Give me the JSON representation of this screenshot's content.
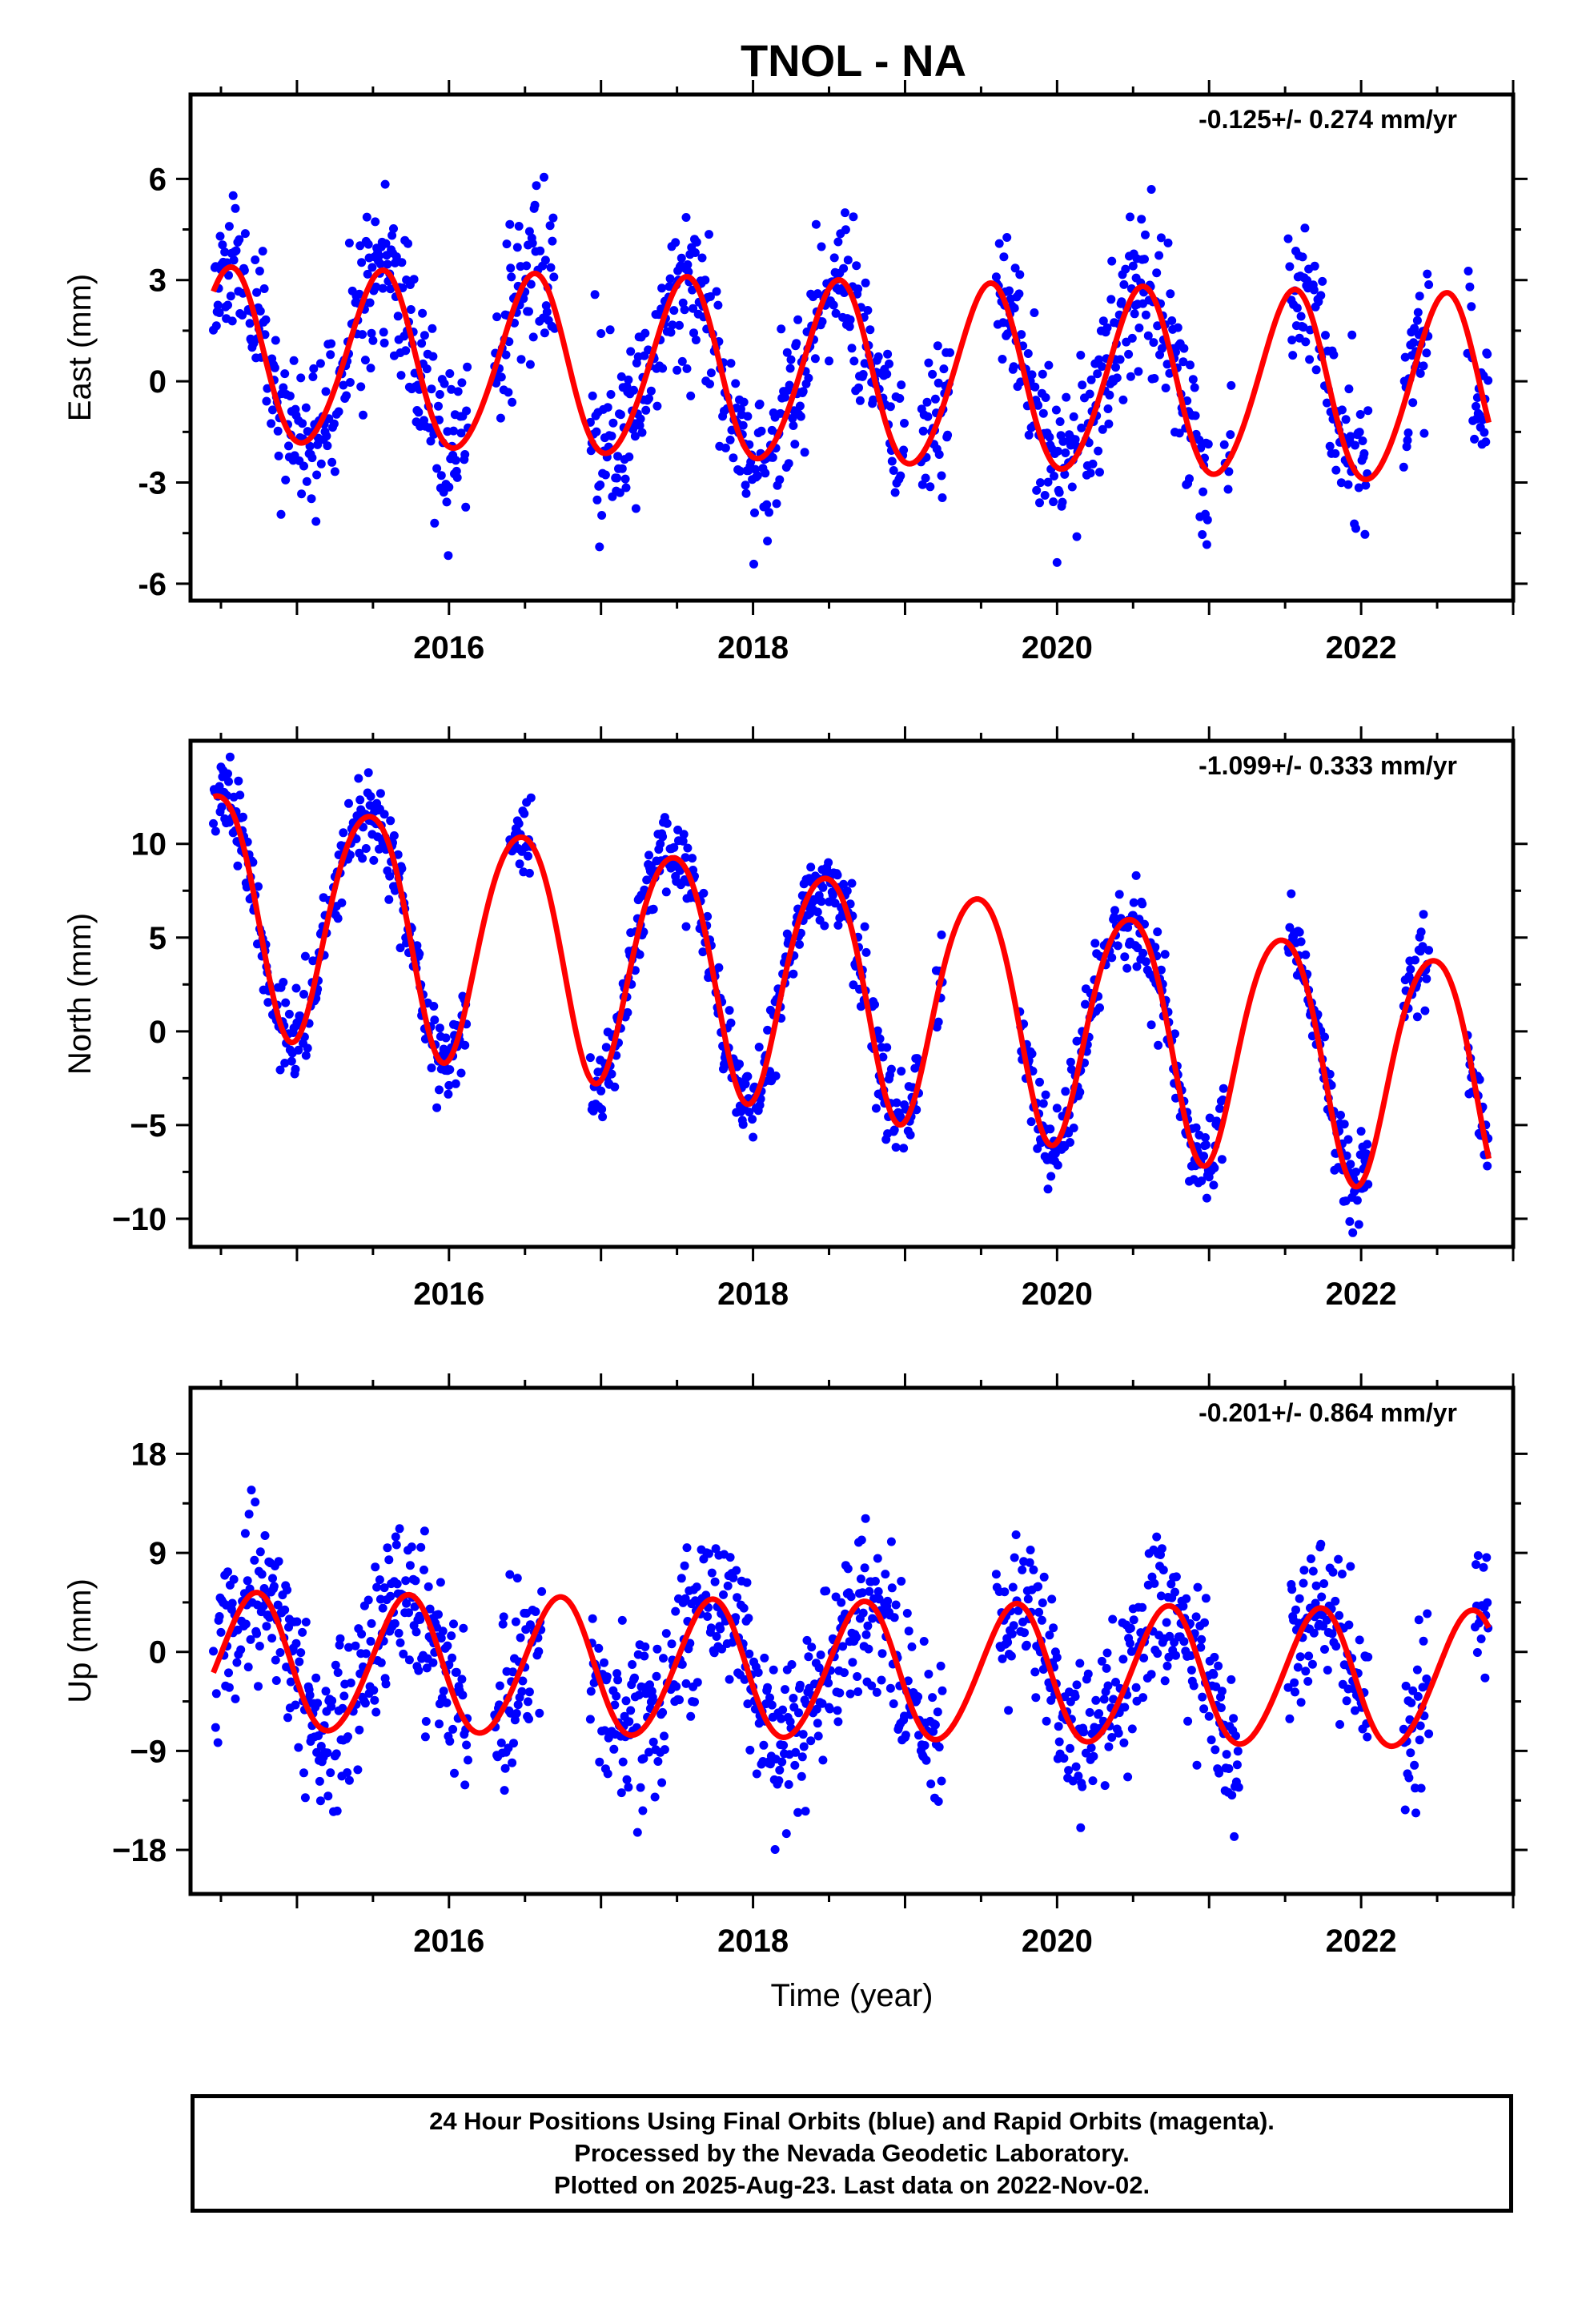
{
  "title": "TNOL - NA",
  "chart_data": [
    {
      "type": "scatter",
      "name": "east-panel",
      "ylabel": "East (mm)",
      "xlabel": "",
      "rate_label": "-0.125+/- 0.274 mm/yr",
      "xlim": [
        2014.3,
        2023.0
      ],
      "ylim": [
        -6.5,
        8.5
      ],
      "xticks": [
        2016,
        2018,
        2020,
        2022
      ],
      "xtick_labels": [
        "2016",
        "2018",
        "2020",
        "2022"
      ],
      "yticks": [
        -6,
        -3,
        0,
        3,
        6
      ],
      "ytick_labels": [
        "-6",
        "-3",
        "0",
        "3",
        "6"
      ],
      "points_color": "#0000ff",
      "model_color": "#ff0000",
      "model": {
        "offset": 0.7,
        "trend": -0.125,
        "t0": 2014.5,
        "amp1": 2.55,
        "phase1": 2014.55,
        "amp2": 0.2,
        "phase2": 2014.62,
        "amp_trend": 0.03
      },
      "sample": {
        "start": 2014.45,
        "end": 2022.84,
        "step": 0.005,
        "noise": 1.2,
        "seed": 11,
        "gaps": [
          [
            2016.13,
            2016.3
          ],
          [
            2016.7,
            2016.93
          ],
          [
            2019.0,
            2019.1
          ],
          [
            2019.3,
            2019.6
          ],
          [
            2021.0,
            2021.1
          ],
          [
            2021.15,
            2021.52
          ],
          [
            2022.05,
            2022.28
          ],
          [
            2022.45,
            2022.7
          ]
        ]
      }
    },
    {
      "type": "scatter",
      "name": "north-panel",
      "ylabel": "North (mm)",
      "xlabel": "",
      "rate_label": "-1.099+/- 0.333 mm/yr",
      "xlim": [
        2014.3,
        2023.0
      ],
      "ylim": [
        -11.5,
        15.5
      ],
      "xticks": [
        2016,
        2018,
        2020,
        2022
      ],
      "xtick_labels": [
        "2016",
        "2018",
        "2020",
        "2022"
      ],
      "yticks": [
        -10,
        -5,
        0,
        5,
        10
      ],
      "ytick_labels": [
        "−10",
        "−5",
        "0",
        "5",
        "10"
      ],
      "points_color": "#0000ff",
      "model_color": "#ff0000",
      "model": {
        "offset": 6.8,
        "trend": -1.099,
        "t0": 2014.5,
        "amp1": 6.3,
        "phase1": 2014.47,
        "amp2": 0.6,
        "phase2": 2014.7,
        "amp_trend": 0.0
      },
      "sample": {
        "start": 2014.45,
        "end": 2022.84,
        "step": 0.005,
        "noise": 1.1,
        "seed": 23,
        "gaps": [
          [
            2016.13,
            2016.4
          ],
          [
            2016.55,
            2016.93
          ],
          [
            2018.75,
            2018.78
          ],
          [
            2019.1,
            2019.2
          ],
          [
            2019.25,
            2019.75
          ],
          [
            2021.1,
            2021.52
          ],
          [
            2022.05,
            2022.28
          ],
          [
            2022.45,
            2022.7
          ]
        ]
      }
    },
    {
      "type": "scatter",
      "name": "up-panel",
      "ylabel": "Up (mm)",
      "xlabel": "Time (year)",
      "rate_label": "-0.201+/- 0.864 mm/yr",
      "xlim": [
        2014.3,
        2023.0
      ],
      "ylim": [
        -22,
        24
      ],
      "xticks": [
        2016,
        2018,
        2020,
        2022
      ],
      "xtick_labels": [
        "2016",
        "2018",
        "2020",
        "2022"
      ],
      "yticks": [
        -18,
        -9,
        0,
        9,
        18
      ],
      "ytick_labels": [
        "−18",
        "−9",
        "0",
        "9",
        "18"
      ],
      "points_color": "#0000ff",
      "model_color": "#ff0000",
      "model": {
        "offset": -1.0,
        "trend": -0.201,
        "t0": 2014.5,
        "amp1": 6.2,
        "phase1": 2014.72,
        "amp2": 0.4,
        "phase2": 2014.8,
        "amp_trend": 0.0
      },
      "sample": {
        "start": 2014.45,
        "end": 2022.84,
        "step": 0.005,
        "noise": 3.6,
        "seed": 37,
        "gaps": [
          [
            2016.13,
            2016.3
          ],
          [
            2016.62,
            2016.93
          ],
          [
            2019.25,
            2019.6
          ],
          [
            2021.2,
            2021.52
          ],
          [
            2022.05,
            2022.28
          ],
          [
            2022.45,
            2022.75
          ]
        ]
      }
    }
  ],
  "footer": {
    "line1": "24 Hour Positions Using Final Orbits (blue) and Rapid Orbits (magenta).",
    "line2": "Processed by the Nevada Geodetic Laboratory.",
    "line3": "Plotted on 2025-Aug-23. Last data on 2022-Nov-02."
  }
}
